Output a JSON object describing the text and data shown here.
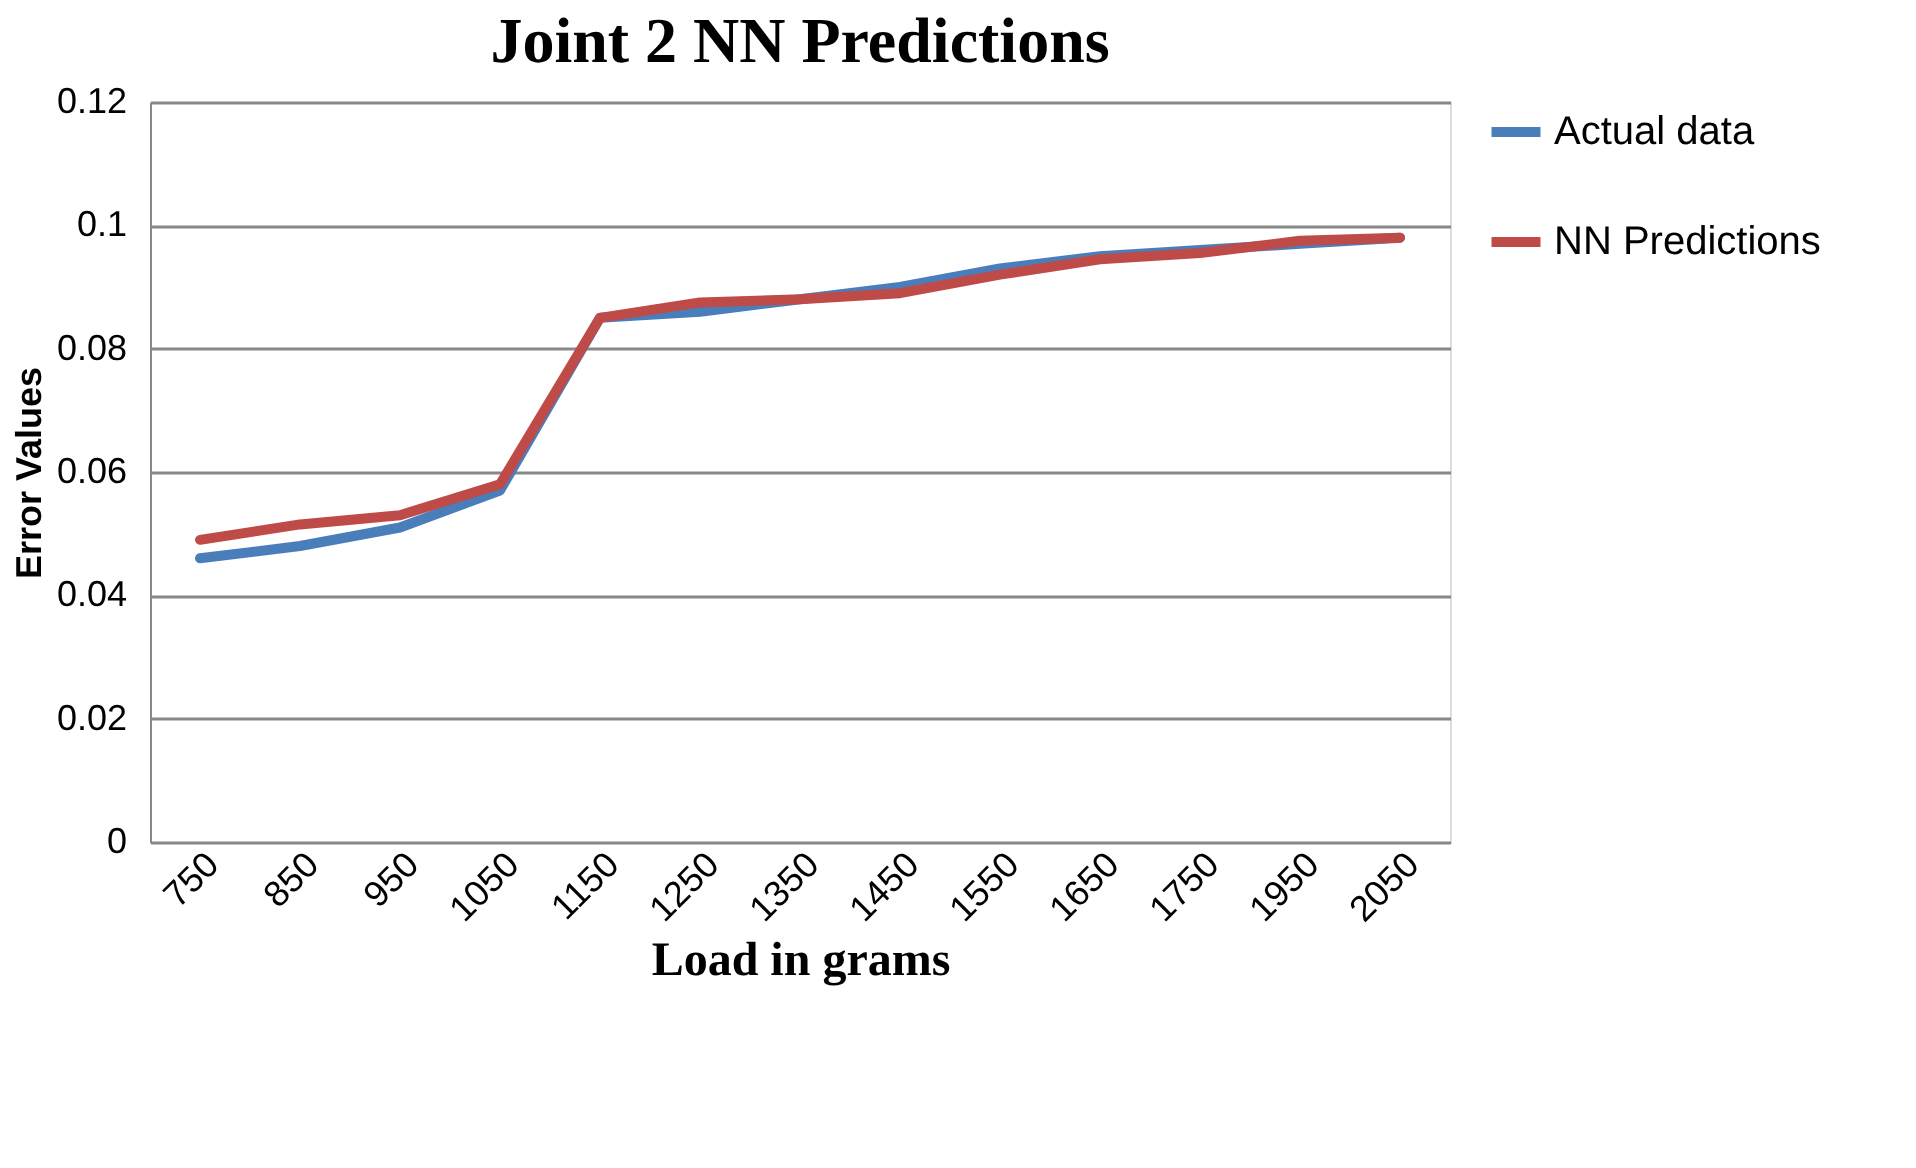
{
  "chart_data": {
    "type": "line",
    "title": "Joint 2 NN Predictions",
    "xlabel": "Load in grams",
    "ylabel": "Error Values",
    "categories": [
      "750",
      "850",
      "950",
      "1050",
      "1150",
      "1250",
      "1350",
      "1450",
      "1550",
      "1650",
      "1750",
      "1950",
      "2050"
    ],
    "series": [
      {
        "name": "Actual data",
        "color": "#4a7ebb",
        "values": [
          0.046,
          0.048,
          0.051,
          0.057,
          0.085,
          0.086,
          0.088,
          0.09,
          0.093,
          0.095,
          0.096,
          0.097,
          0.098
        ]
      },
      {
        "name": "NN Predictions",
        "color": "#be4b48",
        "values": [
          0.049,
          0.0515,
          0.053,
          0.058,
          0.085,
          0.0875,
          0.088,
          0.089,
          0.092,
          0.0945,
          0.0955,
          0.0975,
          0.098
        ]
      }
    ],
    "ylim": [
      0,
      0.12
    ],
    "yticks": [
      0,
      0.02,
      0.04,
      0.06,
      0.08,
      0.1,
      0.12
    ],
    "grid": "y",
    "legend": "right",
    "marker": "none",
    "line_style": "solid"
  }
}
